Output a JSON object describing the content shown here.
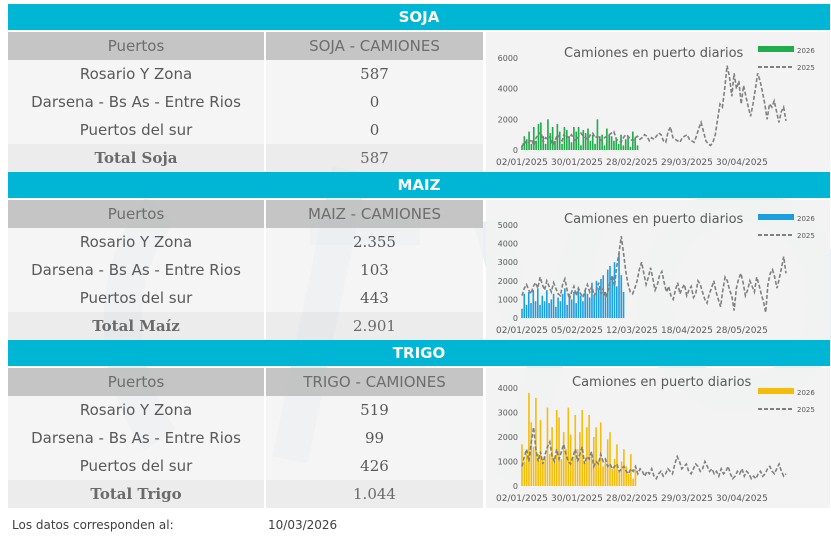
{
  "sections": [
    {
      "title": "SOJA",
      "col_header_left": "Puertos",
      "col_header_right": "SOJA - CAMIONES",
      "rows": [
        {
          "label": "Rosario Y Zona",
          "value": "587"
        },
        {
          "label": "Darsena - Bs As - Entre Rios",
          "value": "0"
        },
        {
          "label": "Puertos del sur",
          "value": "0"
        }
      ],
      "total_label": "Total Soja",
      "total_value": "587",
      "chart": {
        "title": "Camiones en puerto diarios",
        "legend_2026": "2026",
        "legend_2025": "2025",
        "color_2026": "#1fae4a",
        "color_2025": "#808080",
        "y_ticks": [
          "6000",
          "4000",
          "2000",
          "0"
        ],
        "x_ticks": [
          "02/01/2025",
          "30/01/2025",
          "28/02/2025",
          "29/03/2025",
          "30/04/2025"
        ]
      }
    },
    {
      "title": "MAIZ",
      "col_header_left": "Puertos",
      "col_header_right": "MAIZ - CAMIONES",
      "rows": [
        {
          "label": "Rosario Y Zona",
          "value": "2.355"
        },
        {
          "label": "Darsena - Bs As - Entre Rios",
          "value": "103"
        },
        {
          "label": "Puertos del sur",
          "value": "443"
        }
      ],
      "total_label": "Total Maíz",
      "total_value": "2.901",
      "chart": {
        "title": "Camiones en puerto diarios",
        "legend_2026": "2026",
        "legend_2025": "2025",
        "color_2026": "#1a9fe0",
        "color_2025": "#808080",
        "y_ticks": [
          "5000",
          "4000",
          "3000",
          "2000",
          "1000",
          "0"
        ],
        "x_ticks": [
          "02/01/2025",
          "05/02/2025",
          "12/03/2025",
          "18/04/2025",
          "28/05/2025"
        ]
      }
    },
    {
      "title": "TRIGO",
      "col_header_left": "Puertos",
      "col_header_right": "TRIGO - CAMIONES",
      "rows": [
        {
          "label": "Rosario Y Zona",
          "value": "519"
        },
        {
          "label": "Darsena - Bs As - Entre Rios",
          "value": "99"
        },
        {
          "label": "Puertos del sur",
          "value": "426"
        }
      ],
      "total_label": "Total Trigo",
      "total_value": "1.044",
      "chart": {
        "title": "Camiones en puerto diarios",
        "legend_2026": "2026",
        "legend_2025": "2025",
        "color_2026": "#f5bd0a",
        "color_2025": "#808080",
        "y_ticks": [
          "4000",
          "3000",
          "2000",
          "1000",
          "0"
        ],
        "x_ticks": [
          "02/01/2025",
          "30/01/2025",
          "28/02/2025",
          "29/03/2025",
          "30/04/2025"
        ]
      }
    }
  ],
  "footer": {
    "label": "Los datos corresponden al:",
    "date": "10/03/2026"
  },
  "chart_data": [
    {
      "type": "bar",
      "title": "Camiones en puerto diarios",
      "ylim": [
        0,
        6000
      ],
      "series": [
        {
          "name": "2026",
          "values": [
            300,
            900,
            700,
            1200,
            400,
            1500,
            600,
            1700,
            1800,
            900,
            400,
            2000,
            1100,
            1500,
            600,
            1700,
            1200,
            400,
            1500,
            1300,
            900,
            500,
            1500,
            1200,
            1500,
            300,
            1300,
            1100,
            1400,
            600,
            1000,
            400,
            2000,
            900,
            1000,
            300,
            1400,
            1000,
            900,
            600,
            800,
            400,
            1000,
            300,
            700,
            900,
            200,
            1200,
            800,
            300
          ]
        },
        {
          "name": "2025",
          "values": [
            200,
            600,
            400,
            500,
            700,
            300,
            800,
            1000,
            1200,
            500,
            800,
            700,
            900,
            300,
            600,
            1000,
            800,
            600,
            1100,
            900,
            800,
            1000,
            700,
            600,
            900,
            1100,
            900,
            800,
            700,
            1000,
            1100,
            800,
            900,
            700,
            600,
            800,
            900,
            1000,
            1100,
            1200,
            700,
            600,
            500,
            800,
            1000,
            900,
            700,
            600,
            800,
            900,
            700,
            800,
            1000,
            900,
            600,
            800,
            700,
            900,
            1100,
            1000,
            600,
            500,
            1200,
            1500,
            800,
            700,
            600,
            500,
            800,
            900,
            1000,
            700,
            600,
            500,
            900,
            1400,
            1800,
            1200,
            600,
            400,
            300,
            500,
            1000,
            2000,
            3000,
            2800,
            4000,
            5500,
            4800,
            3500,
            5000,
            4000,
            4500,
            3000,
            4200,
            3500,
            2800,
            2200,
            3000,
            4000,
            5000,
            4500,
            3800,
            3000,
            2000,
            3000,
            2800,
            3200,
            2500,
            1800,
            2500,
            2800,
            1900
          ]
        }
      ]
    },
    {
      "type": "bar",
      "title": "Camiones en puerto diarios",
      "ylim": [
        0,
        5000
      ],
      "series": [
        {
          "name": "2026",
          "values": [
            500,
            1300,
            700,
            1400,
            800,
            1500,
            900,
            1600,
            700,
            1200,
            900,
            1500,
            800,
            1000,
            1300,
            600,
            1100,
            900,
            1300,
            1600,
            700,
            1300,
            1000,
            1400,
            800,
            1600,
            1200,
            900,
            1500,
            1300,
            1100,
            1900,
            1200,
            2000,
            1600,
            2100,
            2300,
            1400,
            2600,
            2800,
            2200,
            3000,
            1700,
            3500,
            2300,
            1400
          ]
        },
        {
          "name": "2025",
          "values": [
            1200,
            1600,
            1800,
            1500,
            1300,
            1700,
            1900,
            1600,
            2200,
            1800,
            1500,
            2000,
            1700,
            1400,
            1900,
            1600,
            1300,
            1200,
            1800,
            2100,
            1500,
            1000,
            1400,
            1700,
            1200,
            1600,
            1300,
            1100,
            1500,
            1800,
            1400,
            1700,
            1200,
            1500,
            1900,
            1300,
            1600,
            1100,
            1400,
            1900,
            2300,
            1700,
            2800,
            3500,
            4400,
            3500,
            2500,
            1800,
            1400,
            1300,
            1600,
            2000,
            2600,
            3000,
            2400,
            1800,
            2200,
            2700,
            2100,
            1500,
            1800,
            2300,
            2500,
            1900,
            1400,
            1700,
            1200,
            1000,
            1500,
            1900,
            1300,
            1600,
            1800,
            1200,
            1500,
            1700,
            1100,
            1300,
            2000,
            1800,
            1400,
            1000,
            800,
            1300,
            1600,
            2000,
            1400,
            1000,
            600,
            1500,
            2200,
            2000,
            1500,
            1200,
            400,
            1600,
            2100,
            2400,
            1900,
            1200,
            1500,
            2000,
            1700,
            1400,
            2200,
            1800,
            1300,
            900,
            300,
            1800,
            2400,
            2600,
            2200,
            1600,
            2100,
            2700,
            3300,
            2400
          ]
        }
      ]
    },
    {
      "type": "bar",
      "title": "Camiones en puerto diarios",
      "ylim": [
        0,
        4000
      ],
      "series": [
        {
          "name": "2026",
          "values": [
            1700,
            1000,
            1300,
            3800,
            2600,
            1600,
            3600,
            1300,
            2700,
            1100,
            1200,
            3200,
            1300,
            2400,
            1200,
            3100,
            2800,
            1100,
            2200,
            1500,
            3200,
            2100,
            1200,
            2900,
            1500,
            2200,
            3100,
            1000,
            2400,
            2900,
            1200,
            2000,
            2400,
            1000,
            2600,
            800,
            1000,
            1900,
            2200,
            700,
            1100,
            1700,
            600,
            1000,
            1500,
            800,
            500,
            1300,
            300,
            700
          ]
        },
        {
          "name": "2025",
          "values": [
            800,
            1200,
            1500,
            1000,
            1800,
            2400,
            1500,
            1000,
            1400,
            900,
            1300,
            1600,
            1800,
            1200,
            1000,
            1500,
            1100,
            1400,
            1700,
            1300,
            1000,
            900,
            1200,
            1500,
            1000,
            1300,
            1600,
            900,
            1200,
            1100,
            1400,
            800,
            1000,
            900,
            1300,
            1000,
            1100,
            800,
            900,
            700,
            800,
            900,
            600,
            700,
            800,
            600,
            500,
            700,
            600,
            800,
            500,
            700,
            600,
            400,
            600,
            500,
            700,
            400,
            300,
            500,
            600,
            400,
            500,
            700,
            600,
            500,
            900,
            1200,
            1000,
            700,
            800,
            900,
            600,
            500,
            700,
            900,
            800,
            600,
            700,
            1000,
            800,
            600,
            700,
            500,
            600,
            400,
            700,
            500,
            600,
            800,
            500,
            300,
            400,
            600,
            500,
            700,
            400,
            600,
            500,
            300,
            400,
            300,
            500,
            600,
            400,
            500,
            700,
            800,
            600,
            500,
            700,
            900,
            600,
            400,
            500
          ]
        }
      ]
    }
  ]
}
